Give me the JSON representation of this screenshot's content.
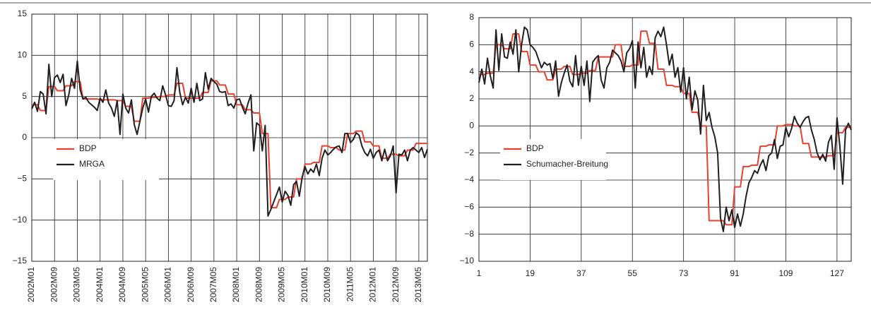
{
  "chart_data": [
    {
      "type": "line",
      "legend": "lower left",
      "grid": true,
      "categories": [
        "2002M01",
        null,
        null,
        null,
        null,
        null,
        null,
        null,
        "2002M09",
        null,
        null,
        null,
        null,
        null,
        null,
        null,
        "2003M05",
        null,
        null,
        null,
        null,
        null,
        null,
        null,
        "2004M01",
        null,
        null,
        null,
        null,
        null,
        null,
        null,
        "2004M09",
        null,
        null,
        null,
        null,
        null,
        null,
        null,
        "2005M05",
        null,
        null,
        null,
        null,
        null,
        null,
        null,
        "2006M01",
        null,
        null,
        null,
        null,
        null,
        null,
        null,
        "2006M09",
        null,
        null,
        null,
        null,
        null,
        null,
        null,
        "2007M05",
        null,
        null,
        null,
        null,
        null,
        null,
        null,
        "2008M01",
        null,
        null,
        null,
        null,
        null,
        null,
        null,
        "2008M09",
        null,
        null,
        null,
        null,
        null,
        null,
        null,
        "2009M05",
        null,
        null,
        null,
        null,
        null,
        null,
        null,
        "2010M01",
        null,
        null,
        null,
        null,
        null,
        null,
        null,
        "2010M09",
        null,
        null,
        null,
        null,
        null,
        null,
        null,
        "2011M05",
        null,
        null,
        null,
        null,
        null,
        null,
        null,
        "2012M01",
        null,
        null,
        null,
        null,
        null,
        null,
        null,
        "2012M09",
        null,
        null,
        null,
        null,
        null,
        null,
        null,
        "2013M05",
        null,
        null,
        null
      ],
      "ylim": [
        -15,
        15
      ],
      "yticks": [
        {
          "value": -15,
          "label": "−15"
        },
        {
          "value": -10,
          "label": "−10"
        },
        {
          "value": -5,
          "label": "−5"
        },
        0,
        5,
        10,
        15
      ],
      "series": [
        {
          "name": "BDP",
          "color": "#e8402f",
          "values": [
            4,
            4,
            4,
            3.3,
            3.3,
            3.3,
            6.2,
            6.2,
            6.2,
            5.7,
            5.7,
            5.7,
            6.3,
            6.3,
            6.3,
            6.8,
            6.8,
            6.8,
            4.7,
            4.7,
            4.7,
            4.7,
            4.7,
            4.7,
            4.6,
            4.6,
            4.6,
            4.6,
            4.6,
            4.6,
            4.5,
            4.5,
            4.5,
            3.8,
            3.8,
            3.8,
            2,
            2,
            2,
            4.8,
            4.8,
            4.8,
            4.9,
            4.9,
            4.9,
            5,
            5,
            5,
            5.2,
            5.2,
            5.2,
            6.6,
            6.6,
            6.6,
            4.8,
            4.8,
            4.8,
            4.8,
            4.8,
            4.8,
            5.5,
            5.5,
            5.5,
            6.9,
            6.9,
            6.9,
            6.4,
            6.4,
            6.4,
            5.3,
            5.3,
            5.3,
            4,
            4,
            4,
            3.4,
            3.4,
            3.4,
            3,
            3,
            3,
            0.5,
            0.5,
            0.5,
            -8.5,
            -8.5,
            -8.5,
            -7.5,
            -7.5,
            -7.5,
            -7.2,
            -7.2,
            -7.2,
            -5,
            -5,
            -5,
            -3.2,
            -3.2,
            -3.2,
            -3,
            -3,
            -3,
            -1,
            -1,
            -1,
            -1.2,
            -1.2,
            -1.2,
            -1.5,
            -1.5,
            -1.5,
            0.5,
            0.5,
            0.5,
            0.8,
            0.8,
            0.8,
            -0.5,
            -0.5,
            -0.5,
            -1,
            -1,
            -1,
            -2.5,
            -2.5,
            -2.5,
            -2,
            -2,
            -2,
            -2.2,
            -2.2,
            -2.2,
            -1.5,
            -1.5,
            -1.5,
            -0.7,
            -0.7,
            -0.7,
            -0.7,
            -0.7
          ]
        },
        {
          "name": "MRGA",
          "color": "#231f20",
          "values": [
            3.5,
            4.3,
            3.2,
            5.6,
            5.3,
            2.9,
            8.9,
            5,
            7.3,
            7.6,
            6.7,
            7.7,
            3.9,
            5.2,
            7.2,
            6,
            9.3,
            5.8,
            4.7,
            4.9,
            4.3,
            4,
            3.7,
            3.3,
            4.8,
            4.3,
            5.8,
            4.2,
            3.6,
            2.6,
            4.5,
            0.4,
            5.3,
            3.6,
            3,
            4.6,
            1.6,
            0.4,
            2,
            3.6,
            4.7,
            3.1,
            5,
            5.4,
            4.8,
            4.5,
            6.3,
            5.2,
            3.9,
            3.8,
            4.5,
            8.5,
            5.5,
            4,
            4.9,
            4.2,
            6,
            4.3,
            6.6,
            4.5,
            4.7,
            7.9,
            5.9,
            7.2,
            6.8,
            6.5,
            5.6,
            5.5,
            5.6,
            3.9,
            4.1,
            3.6,
            4.6,
            4.7,
            3.7,
            2.9,
            4.2,
            5.2,
            -1.6,
            1.8,
            1.5,
            -1.6,
            1.5,
            -9.5,
            -8.7,
            -7.8,
            -6.9,
            -6,
            -7.8,
            -6.5,
            -7,
            -8.2,
            -5.7,
            -5.3,
            -7.1,
            -4.8,
            -3.5,
            -4.4,
            -3.8,
            -4.2,
            -3.2,
            -4.6,
            -2.5,
            -1.5,
            -2.1,
            -1.8,
            -1.4,
            -1.1,
            -1,
            -1.8,
            0.5,
            0.5,
            -0.6,
            -0.2,
            0.6,
            0.3,
            -1,
            -1.8,
            -2.2,
            -1.4,
            -2.5,
            -1.8,
            -1.5,
            -2.8,
            -1.4,
            -2.8,
            -2.2,
            -1,
            -6.7,
            -2,
            -2.1,
            -1.5,
            -2.8,
            -1.5,
            -1.2,
            -1.5,
            -1.8,
            -1.2,
            -2.4,
            -1.4
          ]
        }
      ]
    },
    {
      "type": "line",
      "legend": "lower left",
      "grid": true,
      "x": [
        1,
        2,
        3,
        4,
        5,
        6,
        7,
        8,
        9,
        10,
        11,
        12,
        13,
        14,
        15,
        16,
        17,
        18,
        19,
        20,
        21,
        22,
        23,
        24,
        25,
        26,
        27,
        28,
        29,
        30,
        31,
        32,
        33,
        34,
        35,
        36,
        37,
        38,
        39,
        40,
        41,
        42,
        43,
        44,
        45,
        46,
        47,
        48,
        49,
        50,
        51,
        52,
        53,
        54,
        55,
        56,
        57,
        58,
        59,
        60,
        61,
        62,
        63,
        64,
        65,
        66,
        67,
        68,
        69,
        70,
        71,
        72,
        73,
        74,
        75,
        76,
        77,
        78,
        79,
        80,
        81,
        82,
        83,
        84,
        85,
        86,
        87,
        88,
        89,
        90,
        91,
        92,
        93,
        94,
        95,
        96,
        97,
        98,
        99,
        100,
        101,
        102,
        103,
        104,
        105,
        106,
        107,
        108,
        109,
        110,
        111,
        112,
        113,
        114,
        115,
        116,
        117,
        118,
        119,
        120,
        121,
        122,
        123,
        124,
        125,
        126,
        127,
        128,
        129,
        130,
        131,
        132
      ],
      "xlim": [
        1,
        132
      ],
      "xticks": [
        1,
        19,
        37,
        55,
        73,
        91,
        109,
        127
      ],
      "ylim": [
        -10,
        8
      ],
      "yticks": [
        {
          "value": -10,
          "label": "−10"
        },
        {
          "value": -8,
          "label": "−8"
        },
        {
          "value": -6,
          "label": "−6"
        },
        {
          "value": -4,
          "label": "−4"
        },
        {
          "value": -2,
          "label": "−2"
        },
        0,
        2,
        4,
        6,
        8
      ],
      "series": [
        {
          "name": "BDP",
          "color": "#e8402f",
          "values": [
            3.8,
            3.8,
            3.8,
            3.9,
            3.9,
            3.9,
            6,
            6,
            6,
            5.7,
            5.7,
            5.7,
            6.8,
            6.8,
            6.8,
            5.5,
            5.5,
            5.5,
            4.5,
            4.5,
            4.5,
            4,
            4,
            4,
            3.4,
            3.4,
            3.4,
            4.2,
            4.2,
            4.2,
            4.4,
            4.4,
            4.4,
            3.8,
            3.8,
            3.8,
            3.9,
            3.9,
            3.9,
            4.1,
            4.1,
            4.1,
            5.1,
            5.1,
            5.1,
            5.1,
            5.1,
            5.1,
            6,
            6,
            6,
            4.4,
            4.4,
            4.4,
            4.5,
            4.5,
            4.5,
            7,
            7,
            7,
            6.1,
            6.1,
            6.1,
            4.2,
            4.2,
            4.2,
            3,
            3,
            3,
            2.9,
            2.9,
            2.9,
            2.4,
            2.4,
            2.4,
            1,
            1,
            1,
            0,
            0,
            0,
            -7,
            -7,
            -7,
            -7,
            -7,
            -7,
            -7.3,
            -7.3,
            -7.3,
            -4.5,
            -4.5,
            -4.5,
            -3,
            -3,
            -3,
            -2.9,
            -2.9,
            -2.9,
            -1.5,
            -1.5,
            -1.5,
            -1.4,
            -1.4,
            -1.4,
            0,
            0,
            0,
            0.1,
            0.1,
            0.1,
            0,
            0,
            0,
            -1.3,
            -1.3,
            -1.3,
            -2.3,
            -2.3,
            -2.3,
            -2.3,
            -2.3,
            -2.3,
            -2.2,
            -2.2,
            -2.2,
            -0.5,
            -0.5,
            -0.5,
            -0.1,
            -0.1,
            -0.1
          ]
        },
        {
          "name": "Schumacher-Breitung",
          "color": "#231f20",
          "values": [
            3.2,
            4.2,
            3.1,
            5,
            3.7,
            2.8,
            7.1,
            4.1,
            6.8,
            5.1,
            5,
            6.2,
            5.3,
            7.1,
            4,
            6,
            7.3,
            7.1,
            6,
            5.8,
            5.5,
            4.9,
            4.3,
            4.7,
            4.5,
            4.6,
            3.5,
            4.8,
            2.2,
            3.2,
            3.9,
            4.5,
            3.3,
            2.9,
            5.2,
            3,
            4.4,
            3,
            4.8,
            1.8,
            4.7,
            5,
            5.2,
            3.4,
            2.8,
            4.3,
            4.7,
            5.6,
            5.4,
            5.2,
            4.8,
            4,
            5.4,
            5.7,
            6.3,
            2.8,
            6.2,
            4.3,
            5.8,
            3.6,
            4.4,
            3.8,
            6.5,
            7,
            6.6,
            7.3,
            6,
            4.5,
            5.3,
            3.6,
            4.3,
            2.5,
            4.3,
            2,
            3.6,
            1.2,
            2.6,
            1.9,
            -0.6,
            3,
            0.4,
            1,
            -0.1,
            -0.8,
            -2,
            -6.8,
            -7.8,
            -6,
            -7,
            -6.2,
            -7.5,
            -6.5,
            -7.4,
            -6.5,
            -5.2,
            -4.2,
            -3.8,
            -3.3,
            -3.5,
            -2.9,
            -2.5,
            -3.3,
            -2.2,
            -2,
            -1,
            -2.4,
            -1.5,
            -1.4,
            -0.1,
            -0.8,
            -0.2,
            0.7,
            0.2,
            -0.1,
            0.3,
            0.6,
            0.7,
            -0.3,
            -1,
            -2,
            -2.5,
            -2.1,
            -2.6,
            -1.2,
            -0.7,
            -3.2,
            0.6,
            -1.5,
            -4.3,
            -0.3,
            0.2,
            -0.3
          ]
        }
      ]
    }
  ]
}
